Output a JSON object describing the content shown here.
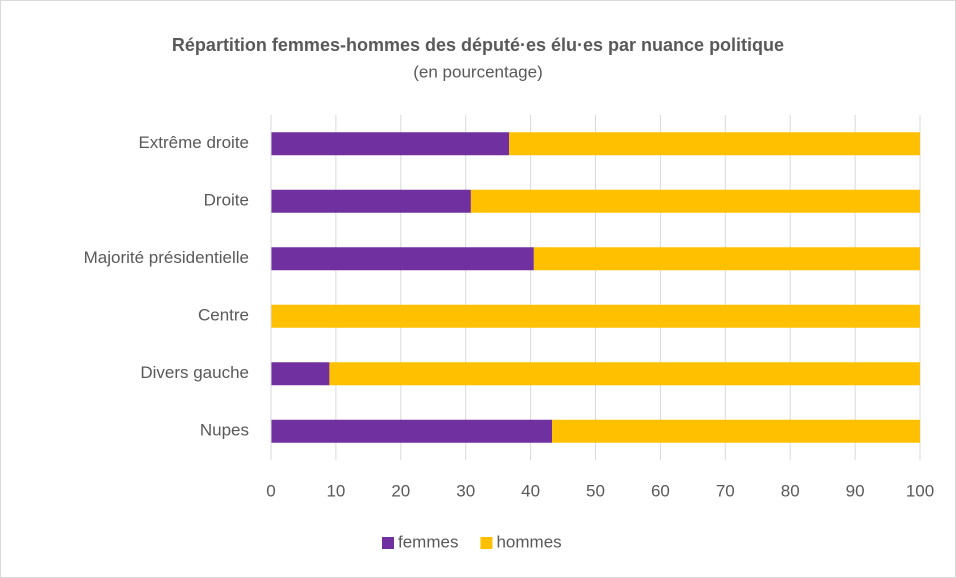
{
  "chart_data": {
    "type": "bar",
    "orientation": "horizontal",
    "stacked": true,
    "title": "Répartition femmes-hommes des député·es élu·es par nuance politique",
    "subtitle": "(en pourcentage)",
    "categories": [
      "Extrême droite",
      "Droite",
      "Majorité présidentielle",
      "Centre",
      "Divers gauche",
      "Nupes"
    ],
    "series": [
      {
        "name": "femmes",
        "color": "#7030a0",
        "values": [
          36.7,
          30.8,
          40.5,
          0,
          9,
          43.3
        ]
      },
      {
        "name": "hommes",
        "color": "#ffc000",
        "values": [
          63.3,
          69.2,
          59.5,
          100,
          91,
          56.7
        ]
      }
    ],
    "xlim": [
      0,
      100
    ],
    "xticks": [
      0,
      10,
      20,
      30,
      40,
      50,
      60,
      70,
      80,
      90,
      100
    ],
    "grid": true,
    "legend": "bottom"
  }
}
